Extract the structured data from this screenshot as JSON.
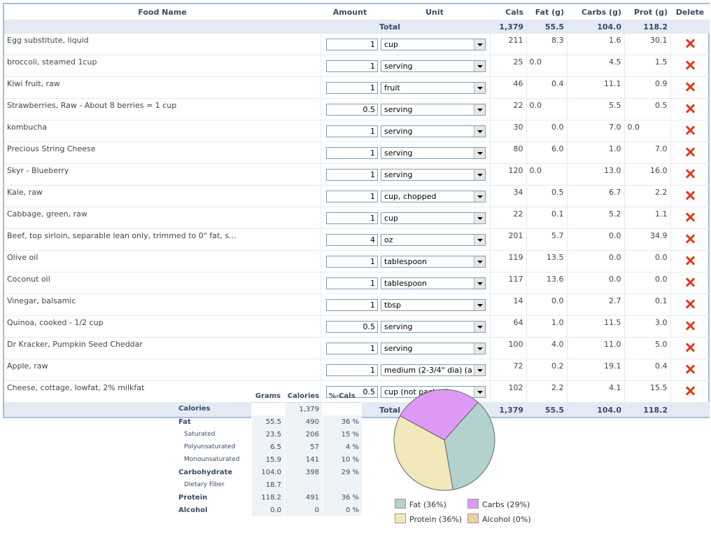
{
  "table": {
    "headers": {
      "food": "Food Name",
      "amount": "Amount",
      "unit": "Unit",
      "cals": "Cals",
      "fat": "Fat (g)",
      "carbs": "Carbs (g)",
      "prot": "Prot (g)",
      "delete": "Delete"
    },
    "total": {
      "label": "Total",
      "cals": "1,379",
      "fat": "55.5",
      "carbs": "104.0",
      "prot": "118.2"
    },
    "rows": [
      {
        "food": "Egg substitute, liquid",
        "amount": "1",
        "unit": "cup",
        "cals": "211",
        "fat": "8.3",
        "carbs": "1.6",
        "prot": "30.1"
      },
      {
        "food": "broccoli, steamed 1cup",
        "amount": "1",
        "unit": "serving",
        "cals": "25",
        "fat": "0.0",
        "carbs": "4.5",
        "prot": "1.5"
      },
      {
        "food": "Kiwi fruit, raw",
        "amount": "1",
        "unit": "fruit",
        "cals": "46",
        "fat": "0.4",
        "carbs": "11.1",
        "prot": "0.9"
      },
      {
        "food": "Strawberries, Raw - About 8 berries = 1 cup",
        "amount": "0.5",
        "unit": "serving",
        "cals": "22",
        "fat": "0.0",
        "carbs": "5.5",
        "prot": "0.5"
      },
      {
        "food": "kombucha",
        "amount": "1",
        "unit": "serving",
        "cals": "30",
        "fat": "0.0",
        "carbs": "7.0",
        "prot": "0.0"
      },
      {
        "food": "Precious String Cheese",
        "amount": "1",
        "unit": "serving",
        "cals": "80",
        "fat": "6.0",
        "carbs": "1.0",
        "prot": "7.0"
      },
      {
        "food": "Skyr - Blueberry",
        "amount": "1",
        "unit": "serving",
        "cals": "120",
        "fat": "0.0",
        "carbs": "13.0",
        "prot": "16.0"
      },
      {
        "food": "Kale, raw",
        "amount": "1",
        "unit": "cup, chopped",
        "cals": "34",
        "fat": "0.5",
        "carbs": "6.7",
        "prot": "2.2"
      },
      {
        "food": "Cabbage, green, raw",
        "amount": "1",
        "unit": "cup",
        "cals": "22",
        "fat": "0.1",
        "carbs": "5.2",
        "prot": "1.1"
      },
      {
        "food": "Beef, top sirloin, separable lean only, trimmed to 0\" fat, s...",
        "amount": "4",
        "unit": "oz",
        "cals": "201",
        "fat": "5.7",
        "carbs": "0.0",
        "prot": "34.9"
      },
      {
        "food": "Olive oil",
        "amount": "1",
        "unit": "tablespoon",
        "cals": "119",
        "fat": "13.5",
        "carbs": "0.0",
        "prot": "0.0"
      },
      {
        "food": "Coconut oil",
        "amount": "1",
        "unit": "tablespoon",
        "cals": "117",
        "fat": "13.6",
        "carbs": "0.0",
        "prot": "0.0"
      },
      {
        "food": "Vinegar, balsamic",
        "amount": "1",
        "unit": "tbsp",
        "cals": "14",
        "fat": "0.0",
        "carbs": "2.7",
        "prot": "0.1"
      },
      {
        "food": "Quinoa, cooked - 1/2 cup",
        "amount": "0.5",
        "unit": "serving",
        "cals": "64",
        "fat": "1.0",
        "carbs": "11.5",
        "prot": "3.0"
      },
      {
        "food": "Dr Kracker, Pumpkin Seed Cheddar",
        "amount": "1",
        "unit": "serving",
        "cals": "100",
        "fat": "4.0",
        "carbs": "11.0",
        "prot": "5.0"
      },
      {
        "food": "Apple, raw",
        "amount": "1",
        "unit": "medium (2-3/4\" dia) (a",
        "cals": "72",
        "fat": "0.2",
        "carbs": "19.1",
        "prot": "0.4"
      },
      {
        "food": "Cheese, cottage, lowfat, 2% milkfat",
        "amount": "0.5",
        "unit": "cup (not packed)",
        "cals": "102",
        "fat": "2.2",
        "carbs": "4.1",
        "prot": "15.5"
      }
    ]
  },
  "summary": {
    "headers": {
      "grams": "Grams",
      "calories": "Calories",
      "pct": "%-Cals"
    },
    "rows": [
      {
        "label": "Calories",
        "grams": "",
        "calories": "1,379",
        "pct": "",
        "sub": false
      },
      {
        "label": "Fat",
        "grams": "55.5",
        "calories": "490",
        "pct": "36 %",
        "sub": false
      },
      {
        "label": "Saturated",
        "grams": "23.5",
        "calories": "206",
        "pct": "15 %",
        "sub": true
      },
      {
        "label": "Polyunsaturated",
        "grams": "6.5",
        "calories": "57",
        "pct": "4 %",
        "sub": true
      },
      {
        "label": "Monounsaturated",
        "grams": "15.9",
        "calories": "141",
        "pct": "10 %",
        "sub": true
      },
      {
        "label": "Carbohydrate",
        "grams": "104.0",
        "calories": "398",
        "pct": "29 %",
        "sub": false
      },
      {
        "label": "Dietary Fiber",
        "grams": "18.7",
        "calories": "",
        "pct": "",
        "sub": true
      },
      {
        "label": "Protein",
        "grams": "118.2",
        "calories": "491",
        "pct": "36 %",
        "sub": false
      },
      {
        "label": "Alcohol",
        "grams": "0.0",
        "calories": "0",
        "pct": "0 %",
        "sub": false
      }
    ]
  },
  "chart_data": {
    "type": "pie",
    "title": "",
    "slices": [
      {
        "label": "Fat (36%)",
        "value": 36,
        "color": "#b3d1ce"
      },
      {
        "label": "Carbs (29%)",
        "value": 29,
        "color": "#dd99f5"
      },
      {
        "label": "Protein (36%)",
        "value": 36,
        "color": "#f3e8bc"
      },
      {
        "label": "Alcohol (0%)",
        "value": 0,
        "color": "#f1cfa1"
      }
    ]
  },
  "colors": {
    "delete": "#e23a1a",
    "link": "#2e6db4",
    "header_bg": "#e3eaf3",
    "border": "#a7bcd9"
  },
  "icons": {
    "delete": "red-x-delete-icon"
  }
}
